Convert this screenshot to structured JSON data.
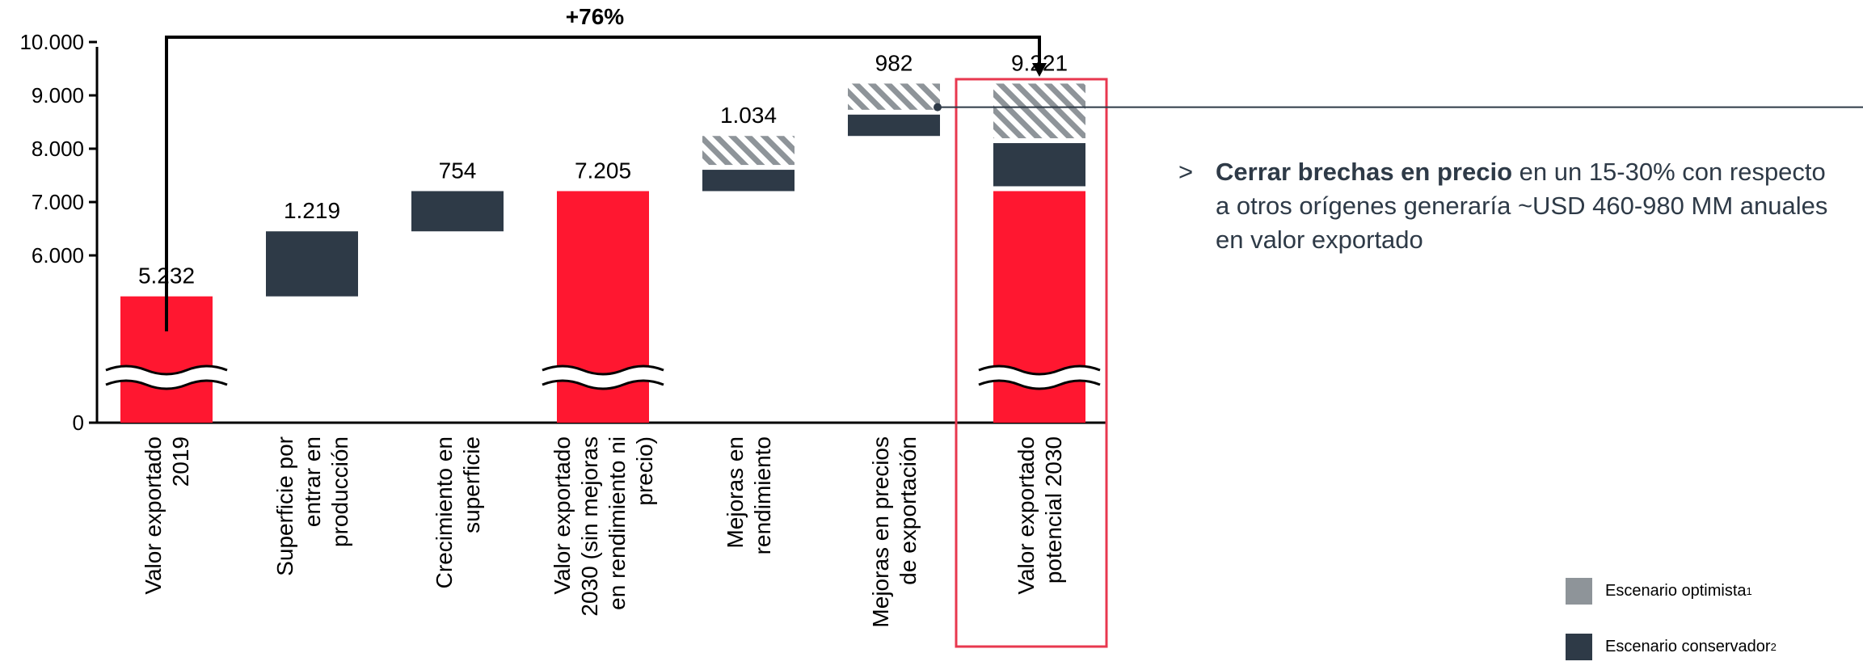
{
  "chart_data": {
    "type": "bar",
    "subtype": "waterfall",
    "title": "",
    "y_ticks": [
      "0",
      "6.000",
      "7.000",
      "8.000",
      "9.000",
      "10.000"
    ],
    "y_axis_break": true,
    "ylim": [
      0,
      10000
    ],
    "categories": [
      [
        "Valor exportado",
        "2019"
      ],
      [
        "Superficie por",
        "entrar en",
        "producción"
      ],
      [
        "Crecimiento en",
        "superficie"
      ],
      [
        "Valor exportado",
        "2030 (sin mejoras",
        "en rendimiento ni",
        "precio)"
      ],
      [
        "Mejoras en",
        "rendimiento"
      ],
      [
        "Mejoras en precios",
        "de exportación"
      ],
      [
        "Valor exportado",
        "potencial 2030"
      ]
    ],
    "bars": [
      {
        "kind": "total",
        "value": 5232,
        "label": "5.232",
        "color": "red"
      },
      {
        "kind": "increment",
        "base": 5232,
        "conservative": 1219,
        "optimistic": 0,
        "label": "1.219"
      },
      {
        "kind": "increment",
        "base": 6451,
        "conservative": 754,
        "optimistic": 0,
        "label": "754"
      },
      {
        "kind": "total",
        "value": 7205,
        "label": "7.205",
        "color": "red"
      },
      {
        "kind": "increment",
        "base": 7205,
        "conservative": 400,
        "optimistic": 634,
        "label": "1.034"
      },
      {
        "kind": "increment",
        "base": 8239,
        "conservative": 400,
        "optimistic": 582,
        "label": "982"
      },
      {
        "kind": "total",
        "value": 7205,
        "conservative": 900,
        "optimistic": 1116,
        "label": "9.221",
        "color": "red",
        "highlighted": true
      }
    ],
    "growth_label": "+76%",
    "legend": [
      {
        "name": "Escenario optimista",
        "sup": "1",
        "color": "#8e9499"
      },
      {
        "name": "Escenario conservador",
        "sup": "2",
        "color": "#2e3a47"
      }
    ],
    "colors": {
      "red": "#ff1730",
      "dark": "#2e3a47",
      "hatch": "#8e9499",
      "highlight_box": "#e8384f"
    }
  },
  "note": {
    "bullet": ">",
    "bold": "Cerrar brechas en precio",
    "text": " en un 15-30% con respecto a otros orígenes generaría ~USD 460-980 MM anuales en valor exportado"
  }
}
